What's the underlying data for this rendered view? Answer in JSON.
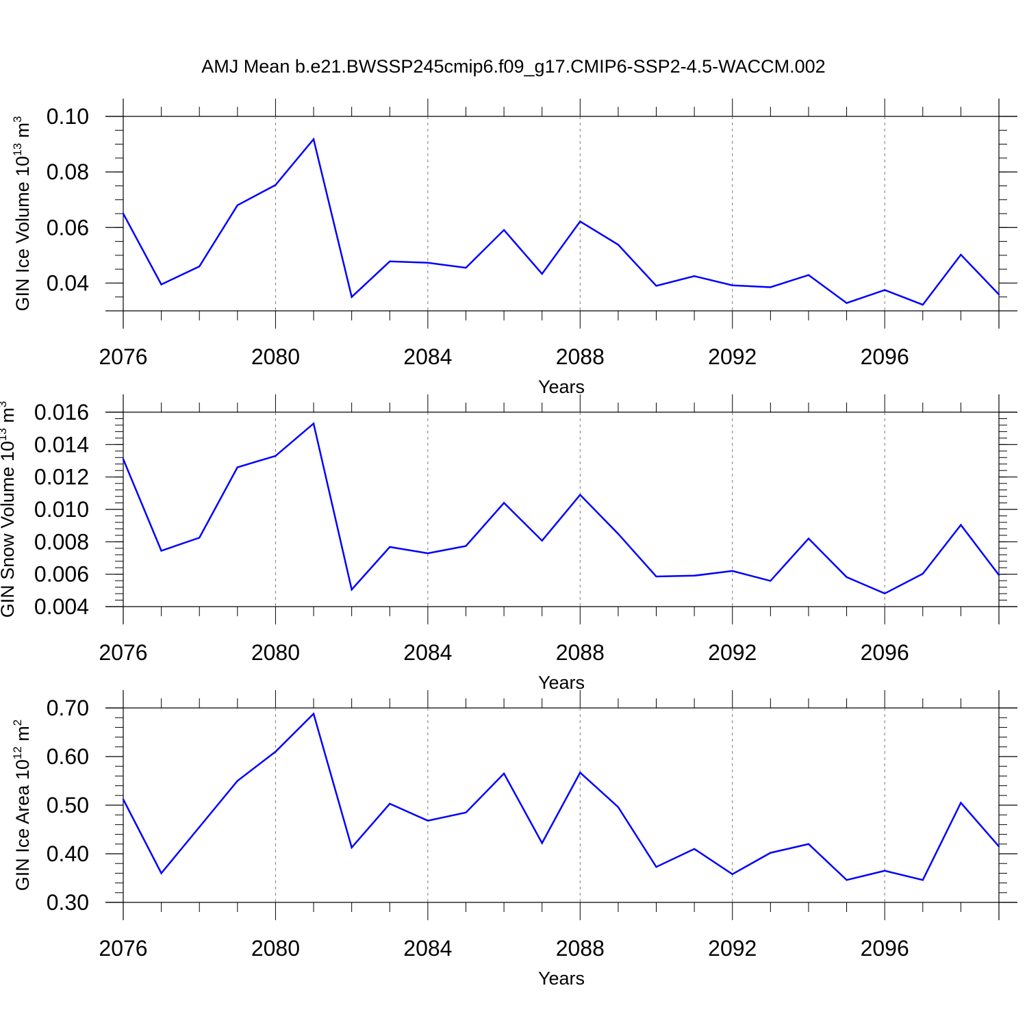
{
  "chart_data": [
    {
      "type": "line",
      "title": "AMJ Mean b.e21.BWSSP245cmip6.f09_g17.CMIP6-SSP2-4.5-WACCM.002",
      "xlabel": "Years",
      "ylabel_main": "GIN Ice Volume 10",
      "ylabel_sup": "13",
      "ylabel_unit": "m",
      "ylabel_unit_sup": "3",
      "xlim": [
        2076,
        2099
      ],
      "ylim": [
        0.03,
        0.1
      ],
      "xticks": [
        2076,
        2080,
        2084,
        2088,
        2092,
        2096
      ],
      "yticks": [
        0.04,
        0.06,
        0.08,
        0.1
      ],
      "ytick_labels": [
        "0.04",
        "0.06",
        "0.08",
        "0.10"
      ],
      "yminor_step": 0.005,
      "grid": "vertical-dashed",
      "color": "#0000ff",
      "x": [
        2076,
        2077,
        2078,
        2079,
        2080,
        2081,
        2082,
        2083,
        2084,
        2085,
        2086,
        2087,
        2088,
        2089,
        2090,
        2091,
        2092,
        2093,
        2094,
        2095,
        2096,
        2097,
        2098,
        2099
      ],
      "values": [
        0.065,
        0.0395,
        0.046,
        0.068,
        0.0753,
        0.0918,
        0.035,
        0.0478,
        0.0473,
        0.0455,
        0.0591,
        0.0433,
        0.0622,
        0.0538,
        0.039,
        0.0425,
        0.0392,
        0.0385,
        0.0429,
        0.0328,
        0.0375,
        0.0322,
        0.0502,
        0.0359
      ]
    },
    {
      "type": "line",
      "xlabel": "Years",
      "ylabel_main": "GIN Snow Volume 10",
      "ylabel_sup": "13",
      "ylabel_unit": "m",
      "ylabel_unit_sup": "3",
      "xlim": [
        2076,
        2099
      ],
      "ylim": [
        0.004,
        0.016
      ],
      "xticks": [
        2076,
        2080,
        2084,
        2088,
        2092,
        2096
      ],
      "yticks": [
        0.004,
        0.006,
        0.008,
        0.01,
        0.012,
        0.014,
        0.016
      ],
      "ytick_labels": [
        "0.004",
        "0.006",
        "0.008",
        "0.010",
        "0.012",
        "0.014",
        "0.016"
      ],
      "yminor_step": 0.0004,
      "grid": "vertical-dashed",
      "color": "#0000ff",
      "x": [
        2076,
        2077,
        2078,
        2079,
        2080,
        2081,
        2082,
        2083,
        2084,
        2085,
        2086,
        2087,
        2088,
        2089,
        2090,
        2091,
        2092,
        2093,
        2094,
        2095,
        2096,
        2097,
        2098,
        2099
      ],
      "values": [
        0.0131,
        0.00745,
        0.00825,
        0.0126,
        0.0133,
        0.0153,
        0.00505,
        0.00768,
        0.00729,
        0.00774,
        0.0104,
        0.00807,
        0.0109,
        0.00849,
        0.00586,
        0.00591,
        0.0062,
        0.00559,
        0.0082,
        0.00582,
        0.00481,
        0.00603,
        0.00904,
        0.00595
      ]
    },
    {
      "type": "line",
      "xlabel": "Years",
      "ylabel_main": "GIN Ice Area 10",
      "ylabel_sup": "12",
      "ylabel_unit": "m",
      "ylabel_unit_sup": "2",
      "xlim": [
        2076,
        2099
      ],
      "ylim": [
        0.3,
        0.7
      ],
      "xticks": [
        2076,
        2080,
        2084,
        2088,
        2092,
        2096
      ],
      "yticks": [
        0.3,
        0.4,
        0.5,
        0.6,
        0.7
      ],
      "ytick_labels": [
        "0.30",
        "0.40",
        "0.50",
        "0.60",
        "0.70"
      ],
      "yminor_step": 0.02,
      "grid": "vertical-dashed",
      "color": "#0000ff",
      "x": [
        2076,
        2077,
        2078,
        2079,
        2080,
        2081,
        2082,
        2083,
        2084,
        2085,
        2086,
        2087,
        2088,
        2089,
        2090,
        2091,
        2092,
        2093,
        2094,
        2095,
        2096,
        2097,
        2098,
        2099
      ],
      "values": [
        0.512,
        0.36,
        0.455,
        0.55,
        0.61,
        0.688,
        0.413,
        0.503,
        0.468,
        0.485,
        0.565,
        0.422,
        0.567,
        0.496,
        0.373,
        0.41,
        0.358,
        0.402,
        0.42,
        0.346,
        0.365,
        0.346,
        0.505,
        0.415
      ]
    }
  ]
}
